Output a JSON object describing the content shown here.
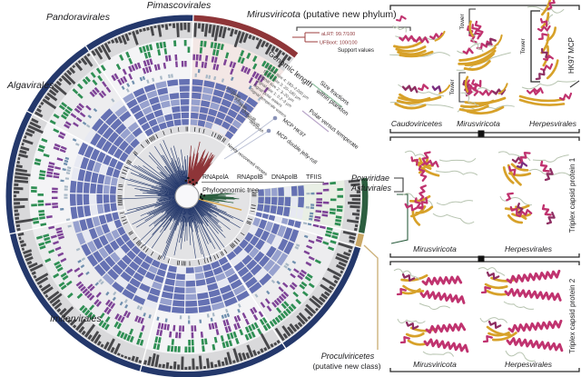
{
  "palette": {
    "navy": "#24386b",
    "red": "#8e3538",
    "green_dark": "#2c5e3f",
    "tan": "#c9a765",
    "tan_branch": "#d9a84e",
    "blue": "#6571b3",
    "blue_light": "#97a1ce",
    "blue_missing": "#e7e9f2",
    "green_tick": "#2f8f54",
    "purple_tick": "#7e4397",
    "polar": "#6f8fae",
    "temperate": "#a8b8c6",
    "hist": "#47474a",
    "hist_bg": "#d9d9db",
    "disc": "#e3e3e5",
    "tick_bg": "#dcdcdf",
    "black": "#1c1c1e",
    "tint_red": "#f3e7e5",
    "tint_green": "#e9efe5",
    "pink": "#c0336f",
    "pink_dark": "#8f2f63",
    "gold": "#d7a129",
    "loop": "#b7c4b0",
    "support_red": "#9c3c3c"
  },
  "circle": {
    "taxa": {
      "pimascovirales": "Pimascovirales",
      "pandoravirales": "Pandoravirales",
      "mirusviricota": "Mirusviricota",
      "mirusviricota_note": " (putative new phylum)",
      "algavirales": "Algavirales",
      "imitervirales": "Imitervirales",
      "poxviridae": "Poxviridae",
      "asfuvirales": "Asfuvirales",
      "proculviricetes": "Proculviricetes",
      "proculviricetes_note": "(putative new class)"
    },
    "support": {
      "alrt": "aLRT: 99.7/100",
      "ufboot": "UFBoot: 100/100",
      "caption": "Support values"
    },
    "center": {
      "genes": [
        "RNApolA",
        "RNApolB",
        "DNApolB",
        "TFIIS"
      ],
      "caption": "Phylogenomic tree"
    },
    "ring_labels": {
      "genomic_length": "Genomic length",
      "signals": [
        "Signal size 4: 180–2,000 µm",
        "Signal size 3: 20–180 µm",
        "Signal size 2: 3–20 µm",
        "Signal size 1: 0.2–3 µm",
        "Signal polar waters",
        "Signal temperate waters"
      ],
      "size_fractions_1": "Size fractions",
      "size_fractions_2": "within plankton",
      "polar_vs": "Polar versus temperate",
      "genes": [
        "pATPase",
        "VLTF3",
        "Primase",
        "TFIIS",
        "DNApolB",
        "RNApolB",
        "RNApolA"
      ],
      "mcp_hk97": "MCP HK97",
      "mcp_djr": "MCP double jelly-roll",
      "newly": "Newly recovered viruses"
    }
  },
  "panels": {
    "hk97": {
      "side": "HK97 MCP",
      "tower": "Tower",
      "bottom": [
        "Caudoviricetes",
        "Mirusviricota",
        "Herpesvirales"
      ]
    },
    "tcp1": {
      "side": "Triplex capsid protein 1",
      "bottom": [
        "Mirusviricota",
        "Herpesvirales"
      ]
    },
    "tcp2": {
      "side": "Triplex capsid protein 2",
      "bottom": [
        "Mirusviricota",
        "Herpesvirales"
      ]
    }
  }
}
